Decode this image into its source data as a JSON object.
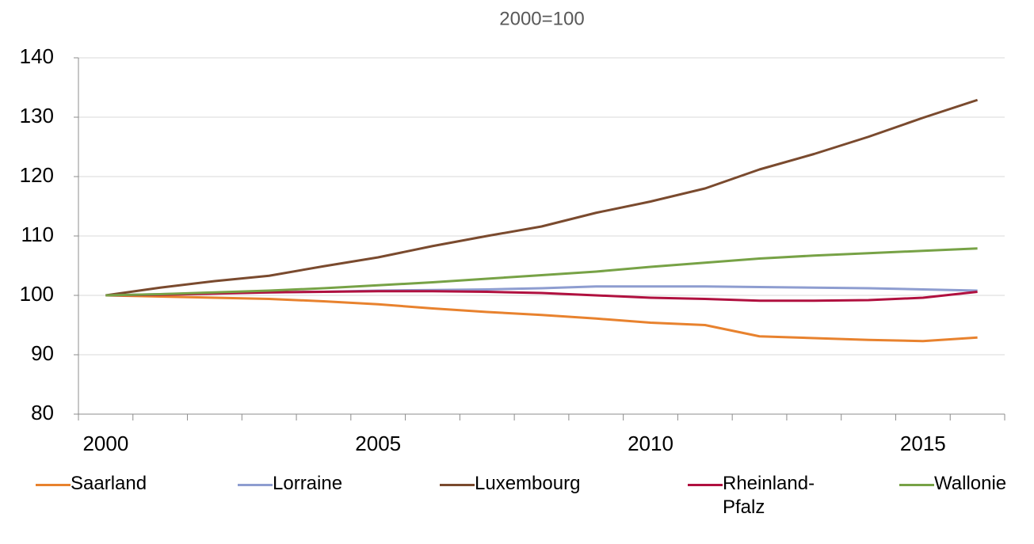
{
  "chart_data": {
    "type": "line",
    "title": "2000=100",
    "categories": [
      "2000",
      null,
      null,
      null,
      null,
      "2005",
      null,
      null,
      null,
      null,
      "2010",
      null,
      null,
      null,
      null,
      "2015",
      null
    ],
    "series": [
      {
        "name": "Saarland",
        "color": "#e8822e",
        "values": [
          100,
          99.8,
          99.6,
          99.4,
          99.0,
          98.5,
          97.8,
          97.2,
          96.7,
          96.1,
          95.4,
          95.0,
          93.1,
          92.8,
          92.5,
          92.3,
          92.9
        ]
      },
      {
        "name": "Lorraine",
        "color": "#8e9dd0",
        "values": [
          100,
          100.2,
          100.4,
          100.5,
          100.6,
          100.8,
          100.9,
          101.0,
          101.2,
          101.5,
          101.5,
          101.5,
          101.4,
          101.3,
          101.2,
          101.0,
          100.8
        ]
      },
      {
        "name": "Luxembourg",
        "color": "#7a4a2e",
        "values": [
          100,
          101.3,
          102.4,
          103.3,
          104.9,
          106.4,
          108.3,
          110.0,
          111.6,
          113.9,
          115.8,
          118.0,
          121.2,
          123.8,
          126.7,
          129.9,
          132.9
        ]
      },
      {
        "name": "Rheinland-Pfalz",
        "color": "#b0103f",
        "values": [
          100,
          100.1,
          100.3,
          100.5,
          100.6,
          100.7,
          100.7,
          100.6,
          100.4,
          100.0,
          99.6,
          99.4,
          99.1,
          99.1,
          99.2,
          99.6,
          100.6
        ]
      },
      {
        "name": "Wallonie",
        "color": "#77a246",
        "values": [
          100,
          100.2,
          100.5,
          100.8,
          101.2,
          101.7,
          102.2,
          102.8,
          103.4,
          104.0,
          104.8,
          105.5,
          106.2,
          106.7,
          107.1,
          107.5,
          107.9
        ]
      }
    ],
    "ylim": [
      80,
      140
    ],
    "yticks": [
      80,
      90,
      100,
      110,
      120,
      130,
      140
    ],
    "grid": true
  }
}
